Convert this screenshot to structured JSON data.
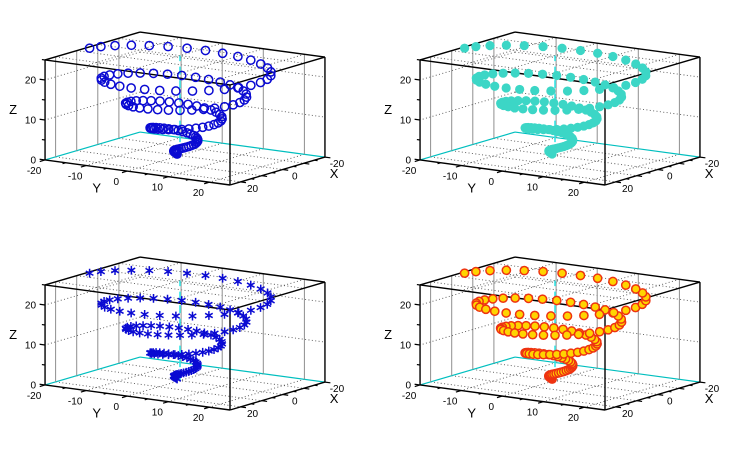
{
  "page": {
    "background": "#ffffff",
    "title": ""
  },
  "chart_data": {
    "type": "scatter",
    "layout": "2x2 grid of identical 3D scatter plots (conical spiral / tornado helix)",
    "title": "",
    "axes": {
      "x": {
        "label": "X",
        "range": [
          -20,
          25
        ],
        "major_ticks": [
          -20,
          -10,
          0,
          10,
          20
        ],
        "minor_step": 5,
        "tick_labels_shown": [
          "20",
          "0",
          "-20"
        ]
      },
      "y": {
        "label": "Y",
        "range": [
          -20,
          25
        ],
        "major_ticks": [
          -20,
          -10,
          0,
          10,
          20
        ],
        "minor_step": 5,
        "tick_labels_shown": [
          "-20",
          "-10",
          "0",
          "10",
          "20"
        ]
      },
      "z": {
        "label": "Z",
        "range": [
          0,
          25
        ],
        "major_ticks": [
          0,
          10,
          20
        ],
        "minor_ticks": [
          5,
          15,
          25
        ],
        "tick_labels_shown": [
          "0",
          "10",
          "20"
        ]
      }
    },
    "series_function": {
      "description": "conical helix sampled at uniform parameter steps",
      "x": "r(f)*cos(theta(f))",
      "y": "r(f)*sin(theta(f))",
      "z": "z0 + (z1-z0)*f",
      "theta_start": 4.712,
      "turns": 4,
      "points": 130,
      "r_start": 0.7,
      "r_end": 22.0,
      "z_start": 0.3,
      "z_end": 23.8
    },
    "grid": {
      "base": "dotted grid at major x/y ticks",
      "top_face": "dotted grid at major x/y ticks",
      "walls_vertical": "solid gray lines at major x/y ticks",
      "walls_horizontal": "dotted lines at z = 10, 20",
      "zeroaxis": "vertical dashed cyan line at x=0, y=0"
    },
    "subplots": [
      {
        "position": "top-left",
        "marker": "open-circle",
        "stroke": "#0a0ad2",
        "fill": "none"
      },
      {
        "position": "top-right",
        "marker": "filled-circle",
        "stroke": "none",
        "fill": "#3cd6c6"
      },
      {
        "position": "bottom-left",
        "marker": "asterisk",
        "stroke": "#0a0ad2",
        "fill": "none"
      },
      {
        "position": "bottom-right",
        "marker": "outlined-circle",
        "stroke": "#ee3311",
        "fill": "#ffd400"
      }
    ],
    "style_colors": {
      "border": "#000000",
      "base_back_edges": "#00bfbf",
      "zeroaxis": "#35e6e6",
      "wall_grid": "#8f8f8f",
      "dotted_grid": "#555555",
      "text": "#000000"
    }
  }
}
